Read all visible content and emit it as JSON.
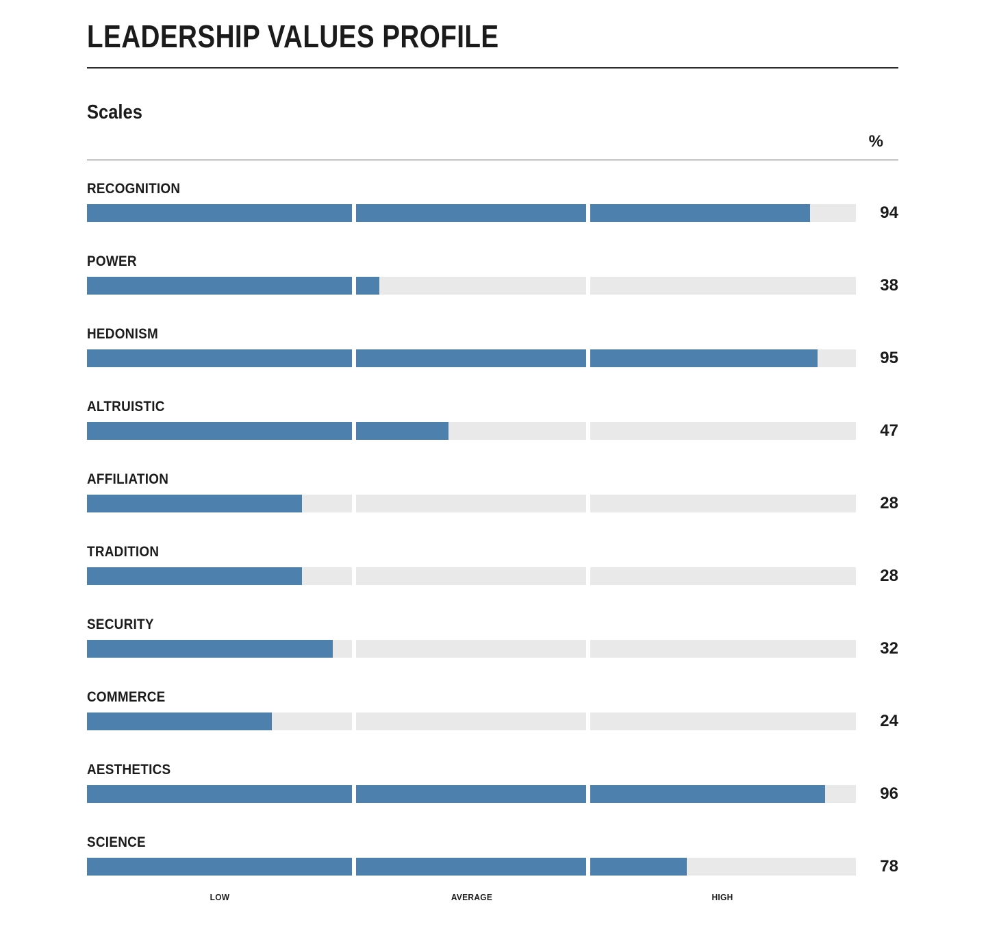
{
  "page": {
    "title": "LEADERSHIP VALUES PROFILE",
    "section_title": "Scales",
    "percent_header": "%"
  },
  "chart_data": {
    "type": "bar",
    "title": "Leadership Values Profile",
    "subtitle": "Scales",
    "orientation": "horizontal",
    "categories": [
      "RECOGNITION",
      "POWER",
      "HEDONISM",
      "ALTRUISTIC",
      "AFFILIATION",
      "TRADITION",
      "SECURITY",
      "COMMERCE",
      "AESTHETICS",
      "SCIENCE"
    ],
    "values": [
      94,
      38,
      95,
      47,
      28,
      28,
      32,
      24,
      96,
      78
    ],
    "value_unit": "%",
    "xlim": [
      0,
      100
    ],
    "xlabel": "",
    "ylabel": "",
    "axis_zone_labels": [
      "LOW",
      "AVERAGE",
      "HIGH"
    ],
    "grid": false,
    "legend": "none",
    "bar_color": "#4e80ad",
    "track_color": "#e9e9e9",
    "text_color": "#1b1b1b"
  }
}
